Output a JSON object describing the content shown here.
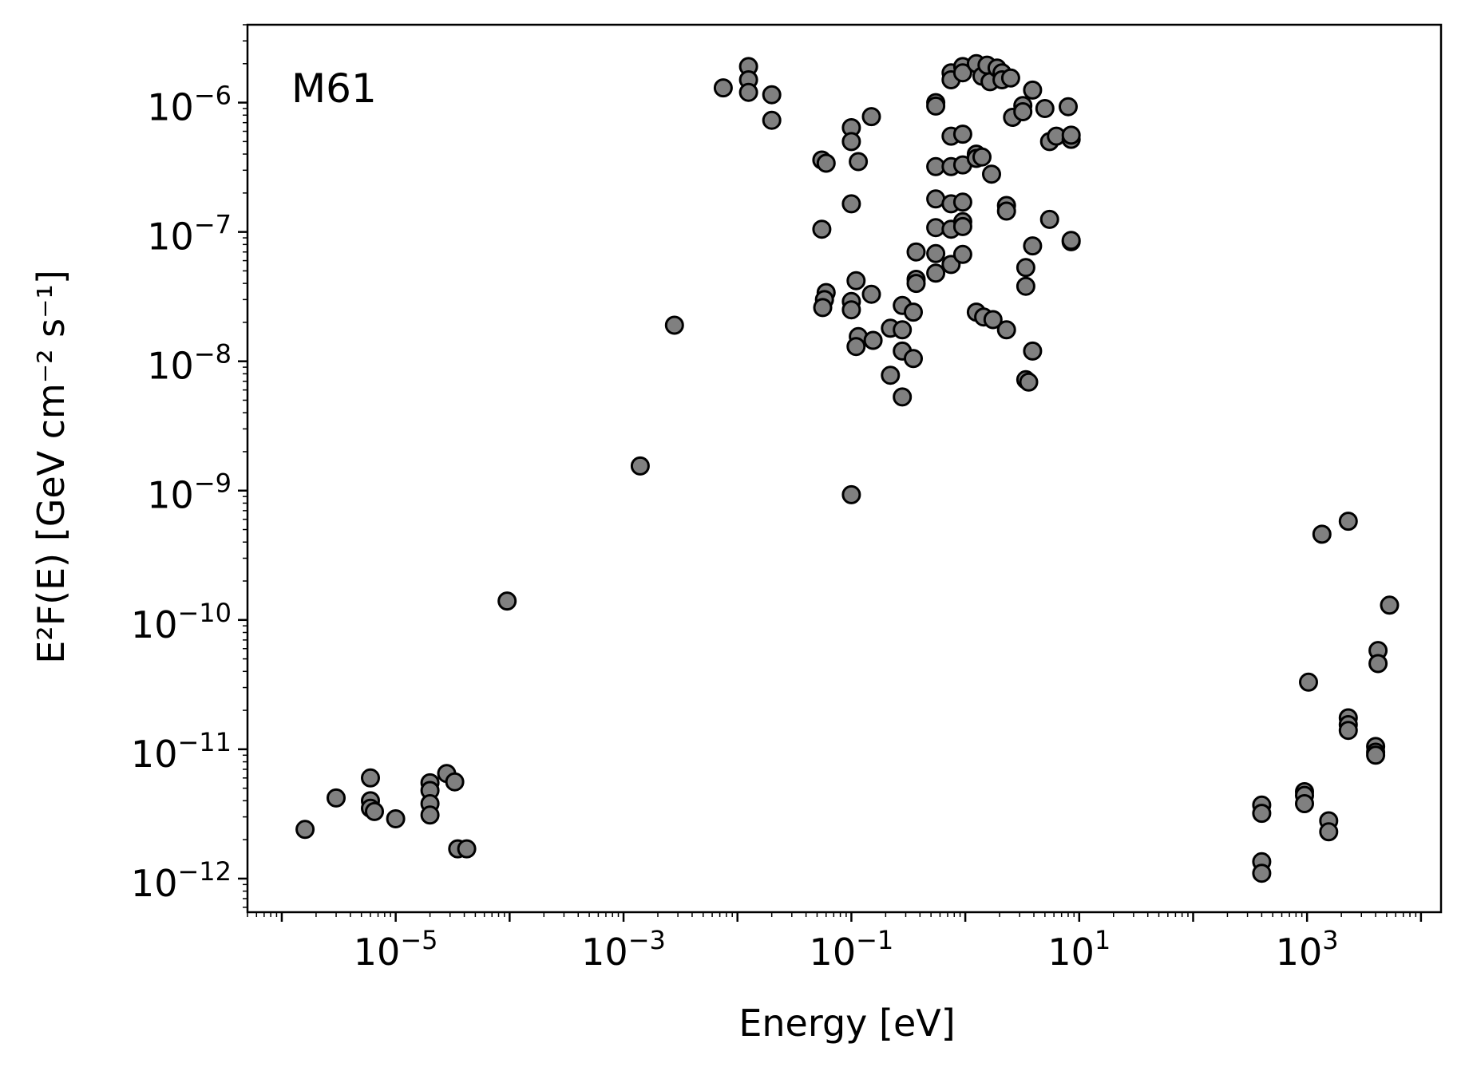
{
  "chart_data": {
    "type": "scatter",
    "xscale": "log",
    "yscale": "log",
    "xlim": [
      5e-07,
      15000
    ],
    "ylim": [
      5.5e-13,
      4e-06
    ],
    "xlabel": "Energy [eV]",
    "ylabel": "E²F(E) [GeV cm⁻² s⁻¹]",
    "annotation": "M61",
    "grid": false,
    "x_ticks": [
      {
        "value": 1e-05,
        "base": "10",
        "exp": "−5"
      },
      {
        "value": 0.001,
        "base": "10",
        "exp": "−3"
      },
      {
        "value": 0.1,
        "base": "10",
        "exp": "−1"
      },
      {
        "value": 10,
        "base": "10",
        "exp": "1"
      },
      {
        "value": 1000,
        "base": "10",
        "exp": "3"
      }
    ],
    "y_ticks": [
      {
        "value": 1e-12,
        "base": "10",
        "exp": "−12"
      },
      {
        "value": 1e-11,
        "base": "10",
        "exp": "−11"
      },
      {
        "value": 1e-10,
        "base": "10",
        "exp": "−10"
      },
      {
        "value": 1e-09,
        "base": "10",
        "exp": "−9"
      },
      {
        "value": 1e-08,
        "base": "10",
        "exp": "−8"
      },
      {
        "value": 1e-07,
        "base": "10",
        "exp": "−7"
      },
      {
        "value": 1e-06,
        "base": "10",
        "exp": "−6"
      }
    ],
    "marker_fill": "#808080",
    "marker_edge": "#000000",
    "points": [
      [
        1.6e-06,
        2.4e-12
      ],
      [
        3e-06,
        4.2e-12
      ],
      [
        6e-06,
        6e-12
      ],
      [
        6e-06,
        4e-12
      ],
      [
        6e-06,
        3.5e-12
      ],
      [
        6.5e-06,
        3.3e-12
      ],
      [
        1e-05,
        2.9e-12
      ],
      [
        2e-05,
        5.5e-12
      ],
      [
        2e-05,
        4.8e-12
      ],
      [
        2e-05,
        3.8e-12
      ],
      [
        2e-05,
        3.1e-12
      ],
      [
        2.8e-05,
        6.5e-12
      ],
      [
        3.3e-05,
        5.6e-12
      ],
      [
        3.5e-05,
        1.7e-12
      ],
      [
        4.2e-05,
        1.7e-12
      ],
      [
        9.5e-05,
        1.4e-10
      ],
      [
        0.0014,
        1.55e-09
      ],
      [
        0.0028,
        1.9e-08
      ],
      [
        0.0075,
        1.3e-06
      ],
      [
        0.0125,
        1.9e-06
      ],
      [
        0.0125,
        1.5e-06
      ],
      [
        0.0125,
        1.2e-06
      ],
      [
        0.02,
        1.15e-06
      ],
      [
        0.02,
        7.3e-07
      ],
      [
        0.055,
        3.6e-07
      ],
      [
        0.06,
        3.4e-07
      ],
      [
        0.055,
        1.05e-07
      ],
      [
        0.06,
        3.4e-08
      ],
      [
        0.058,
        3e-08
      ],
      [
        0.056,
        2.6e-08
      ],
      [
        0.1,
        6.4e-07
      ],
      [
        0.1,
        5e-07
      ],
      [
        0.1,
        1.65e-07
      ],
      [
        0.1,
        2.9e-08
      ],
      [
        0.1,
        2.5e-08
      ],
      [
        0.1,
        9.3e-10
      ],
      [
        0.11,
        4.2e-08
      ],
      [
        0.115,
        1.55e-08
      ],
      [
        0.11,
        1.3e-08
      ],
      [
        0.115,
        3.5e-07
      ],
      [
        0.15,
        7.8e-07
      ],
      [
        0.15,
        3.3e-08
      ],
      [
        0.155,
        1.45e-08
      ],
      [
        0.22,
        1.8e-08
      ],
      [
        0.22,
        7.8e-09
      ],
      [
        0.28,
        2.7e-08
      ],
      [
        0.28,
        1.75e-08
      ],
      [
        0.28,
        1.2e-08
      ],
      [
        0.28,
        5.3e-09
      ],
      [
        0.35,
        2.4e-08
      ],
      [
        0.35,
        1.05e-08
      ],
      [
        0.37,
        7e-08
      ],
      [
        0.37,
        4.3e-08
      ],
      [
        0.37,
        4e-08
      ],
      [
        0.55,
        1e-06
      ],
      [
        0.55,
        9.4e-07
      ],
      [
        0.55,
        3.2e-07
      ],
      [
        0.55,
        1.8e-07
      ],
      [
        0.55,
        1.08e-07
      ],
      [
        0.55,
        6.8e-08
      ],
      [
        0.55,
        4.8e-08
      ],
      [
        0.75,
        1.7e-06
      ],
      [
        0.75,
        1.5e-06
      ],
      [
        0.75,
        5.5e-07
      ],
      [
        0.75,
        3.2e-07
      ],
      [
        0.75,
        1.65e-07
      ],
      [
        0.75,
        1.05e-07
      ],
      [
        0.75,
        5.6e-08
      ],
      [
        0.95,
        1.9e-06
      ],
      [
        0.95,
        1.7e-06
      ],
      [
        0.95,
        5.7e-07
      ],
      [
        0.95,
        3.3e-07
      ],
      [
        0.95,
        1.7e-07
      ],
      [
        0.95,
        1.2e-07
      ],
      [
        0.95,
        1.1e-07
      ],
      [
        0.95,
        6.7e-08
      ],
      [
        1.25,
        2e-06
      ],
      [
        1.25,
        4e-07
      ],
      [
        1.25,
        3.7e-07
      ],
      [
        1.25,
        2.4e-08
      ],
      [
        1.4,
        1.6e-06
      ],
      [
        1.4,
        3.8e-07
      ],
      [
        1.45,
        2.2e-08
      ],
      [
        1.55,
        1.95e-06
      ],
      [
        1.65,
        1.45e-06
      ],
      [
        1.7,
        2.8e-07
      ],
      [
        1.75,
        2.1e-08
      ],
      [
        1.9,
        1.85e-06
      ],
      [
        2.1,
        1.7e-06
      ],
      [
        2.1,
        1.5e-06
      ],
      [
        2.3,
        1.6e-07
      ],
      [
        2.3,
        1.45e-07
      ],
      [
        2.3,
        1.75e-08
      ],
      [
        2.5,
        1.55e-06
      ],
      [
        2.6,
        7.7e-07
      ],
      [
        3.2,
        9.5e-07
      ],
      [
        3.2,
        8.5e-07
      ],
      [
        3.4,
        5.3e-08
      ],
      [
        3.4,
        3.8e-08
      ],
      [
        3.4,
        7.2e-09
      ],
      [
        3.6,
        6.9e-09
      ],
      [
        3.9,
        1.25e-06
      ],
      [
        3.9,
        7.8e-08
      ],
      [
        3.9,
        1.2e-08
      ],
      [
        5,
        9e-07
      ],
      [
        5.5,
        1.25e-07
      ],
      [
        5.5,
        5e-07
      ],
      [
        6.3,
        5.5e-07
      ],
      [
        8,
        9.3e-07
      ],
      [
        8.5,
        5.2e-07
      ],
      [
        8.5,
        5.6e-07
      ],
      [
        8.5,
        8.4e-08
      ],
      [
        8.5,
        8.6e-08
      ],
      [
        400,
        3.7e-12
      ],
      [
        400,
        3.2e-12
      ],
      [
        400,
        1.35e-12
      ],
      [
        400,
        1.1e-12
      ],
      [
        950,
        4.7e-12
      ],
      [
        950,
        4.4e-12
      ],
      [
        950,
        3.8e-12
      ],
      [
        1030,
        3.3e-11
      ],
      [
        1350,
        4.6e-10
      ],
      [
        1550,
        2.8e-12
      ],
      [
        1550,
        2.3e-12
      ],
      [
        2300,
        5.8e-10
      ],
      [
        2300,
        1.75e-11
      ],
      [
        2300,
        1.55e-11
      ],
      [
        2300,
        1.4e-11
      ],
      [
        4000,
        1.05e-11
      ],
      [
        4000,
        9.5e-12
      ],
      [
        4000,
        9e-12
      ],
      [
        4200,
        5.8e-11
      ],
      [
        4200,
        4.6e-11
      ],
      [
        5300,
        1.3e-10
      ]
    ]
  }
}
